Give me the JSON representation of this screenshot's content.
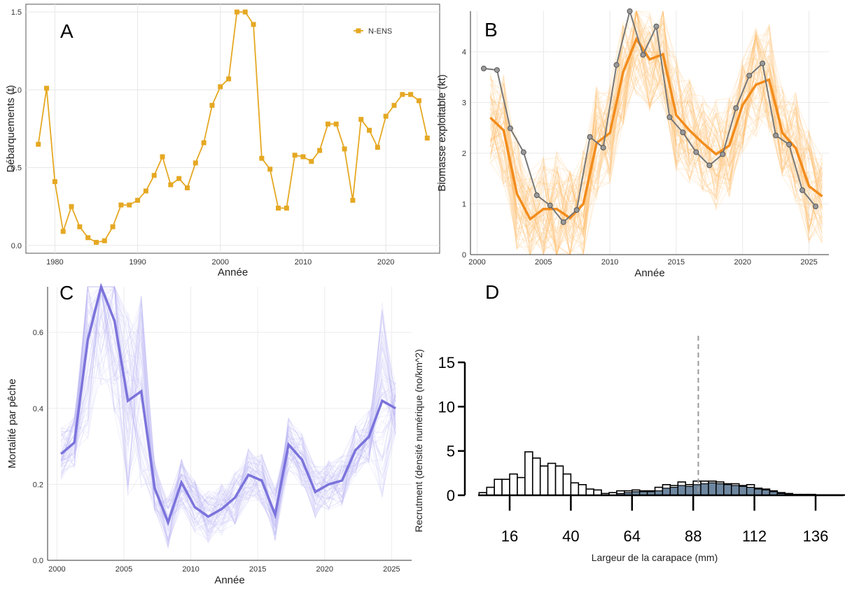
{
  "chart_data": [
    {
      "panel": "A",
      "type": "line",
      "xlabel": "Année",
      "ylabel": "Débarquements (t)",
      "xlim": [
        1976.5,
        2026.5
      ],
      "ylim": [
        -0.05,
        1.55
      ],
      "xticks": [
        1980,
        1990,
        2000,
        2010,
        2020
      ],
      "yticks": [
        "0.0",
        "0.5",
        "1.0",
        "1.5"
      ],
      "grid": true,
      "legend": "top-right",
      "colors": {
        "series": "#E5A823"
      },
      "series": [
        {
          "name": "N-ENS",
          "x": [
            1978,
            1979,
            1980,
            1981,
            1982,
            1983,
            1984,
            1985,
            1986,
            1987,
            1988,
            1989,
            1990,
            1991,
            1992,
            1993,
            1994,
            1995,
            1996,
            1997,
            1998,
            1999,
            2000,
            2001,
            2002,
            2003,
            2004,
            2005,
            2006,
            2007,
            2008,
            2009,
            2010,
            2011,
            2012,
            2013,
            2014,
            2015,
            2016,
            2017,
            2018,
            2019,
            2020,
            2021,
            2022,
            2023,
            2024,
            2025
          ],
          "y": [
            0.65,
            1.01,
            0.41,
            0.09,
            0.25,
            0.12,
            0.05,
            0.02,
            0.03,
            0.12,
            0.26,
            0.26,
            0.29,
            0.35,
            0.45,
            0.57,
            0.39,
            0.43,
            0.37,
            0.53,
            0.66,
            0.9,
            1.02,
            1.07,
            1.5,
            1.5,
            1.42,
            0.56,
            0.49,
            0.24,
            0.24,
            0.58,
            0.57,
            0.54,
            0.61,
            0.78,
            0.78,
            0.62,
            0.29,
            0.81,
            0.74,
            0.63,
            0.83,
            0.9,
            0.97,
            0.97,
            0.93,
            0.69
          ]
        }
      ]
    },
    {
      "panel": "B",
      "type": "line",
      "xlabel": "Année",
      "ylabel": "Biomasse exploitable (kt)",
      "xlim": [
        1999.5,
        2026.5
      ],
      "ylim": [
        0,
        4.8
      ],
      "xticks": [
        2000,
        2005,
        2010,
        2015,
        2020,
        2025
      ],
      "yticks": [
        "0",
        "1",
        "2",
        "3",
        "4"
      ],
      "grid": true,
      "colors": {
        "median": "#F28C1C",
        "observed": "#777777",
        "ensemble": "#FDB85A"
      },
      "median": {
        "x": [
          2001,
          2002,
          2003,
          2004,
          2005,
          2006,
          2007,
          2008,
          2009,
          2010,
          2011,
          2012,
          2013,
          2014,
          2015,
          2016,
          2017,
          2018,
          2019,
          2020,
          2021,
          2022,
          2023,
          2024,
          2025,
          2026
        ],
        "y": [
          2.7,
          2.45,
          1.2,
          0.7,
          0.9,
          0.9,
          0.72,
          1.0,
          2.2,
          2.4,
          3.6,
          4.25,
          3.85,
          3.95,
          2.75,
          2.45,
          2.2,
          1.98,
          2.15,
          2.95,
          3.35,
          3.45,
          2.4,
          2.1,
          1.35,
          1.15
        ]
      },
      "observed": {
        "x": [
          2000.5,
          2001.5,
          2002.5,
          2003.5,
          2004.5,
          2005.5,
          2006.5,
          2007.5,
          2008.5,
          2009.5,
          2010.5,
          2011.5,
          2012.5,
          2013.5,
          2014.5,
          2015.5,
          2016.5,
          2017.5,
          2018.5,
          2019.5,
          2020.5,
          2021.5,
          2022.5,
          2023.5,
          2024.5,
          2025.5
        ],
        "y": [
          3.67,
          3.64,
          2.49,
          2.02,
          1.17,
          0.97,
          0.64,
          0.88,
          2.32,
          2.11,
          3.74,
          4.8,
          3.94,
          4.5,
          2.71,
          2.41,
          2.02,
          1.76,
          1.98,
          2.89,
          3.53,
          3.77,
          2.35,
          2.17,
          1.27,
          0.95
        ]
      }
    },
    {
      "panel": "C",
      "type": "line",
      "xlabel": "Année",
      "ylabel": "Mortalité par pêche",
      "xlim": [
        1999.3,
        2026.5
      ],
      "ylim": [
        0,
        0.72
      ],
      "xticks": [
        2000,
        2005,
        2010,
        2015,
        2020,
        2025
      ],
      "yticks": [
        "0.0",
        "0.2",
        "0.4",
        "0.6"
      ],
      "grid": true,
      "colors": {
        "median": "#7B73DB",
        "ensemble": "#B8B2F5"
      },
      "median": {
        "x": [
          2000.3,
          2001.3,
          2002.3,
          2003.3,
          2004.3,
          2005.3,
          2006.3,
          2007.3,
          2008.3,
          2009.3,
          2010.3,
          2011.3,
          2012.3,
          2013.3,
          2014.3,
          2015.3,
          2016.3,
          2017.3,
          2018.3,
          2019.3,
          2020.3,
          2021.3,
          2022.3,
          2023.3,
          2024.3,
          2025.3
        ],
        "y": [
          0.28,
          0.31,
          0.58,
          0.72,
          0.63,
          0.42,
          0.445,
          0.19,
          0.1,
          0.205,
          0.14,
          0.115,
          0.135,
          0.165,
          0.225,
          0.21,
          0.12,
          0.305,
          0.265,
          0.18,
          0.2,
          0.21,
          0.29,
          0.325,
          0.42,
          0.4
        ]
      }
    },
    {
      "panel": "D",
      "type": "bar",
      "xlabel": "Largeur de la carapace (mm)",
      "ylabel": "Recrutment (densité numérique (no/km^2)",
      "xlim": [
        0,
        156
      ],
      "ylim": [
        0,
        15
      ],
      "xticks": [
        "16",
        "40",
        "64",
        "88",
        "112",
        "136"
      ],
      "yticks": [
        "0",
        "5",
        "10",
        "15"
      ],
      "reference_line_x": 90,
      "colors": {
        "open": "#ffffff",
        "filled": "#5E7A96",
        "refline": "#999999"
      },
      "bins_start": 4,
      "bin_width": 3,
      "series": [
        {
          "name": "open",
          "values": [
            0.3,
            0.9,
            1.8,
            1.8,
            2.4,
            2.0,
            4.9,
            4.2,
            3.3,
            3.6,
            3.3,
            2.4,
            1.4,
            1.2,
            0.7,
            0.6,
            0.2,
            0.3,
            0.5,
            0.5,
            0.6,
            0.5,
            0.5,
            0.9,
            1.2,
            1.1,
            1.5,
            1.2,
            1.6,
            1.6,
            1.6,
            1.5,
            1.3,
            1.3,
            1.1,
            1.2,
            0.8,
            0.7,
            0.5,
            0.3,
            0.2,
            0.1,
            0.1,
            0.1,
            0.05,
            0.05,
            0.05,
            0.05,
            0.05,
            0.05
          ]
        },
        {
          "name": "filled",
          "values": [
            0,
            0,
            0,
            0,
            0,
            0,
            0,
            0,
            0,
            0,
            0,
            0,
            0,
            0,
            0,
            0,
            0,
            0,
            0.2,
            0.3,
            0.4,
            0.4,
            0.4,
            0.5,
            0.8,
            0.9,
            1.1,
            1.0,
            1.2,
            1.3,
            1.4,
            1.3,
            1.2,
            1.1,
            1.0,
            0.9,
            0.7,
            0.6,
            0.4,
            0.2,
            0.1,
            0.1,
            0.05,
            0.05,
            0.02,
            0.02,
            0.02,
            0.02,
            0.02,
            0.02
          ]
        }
      ]
    }
  ]
}
